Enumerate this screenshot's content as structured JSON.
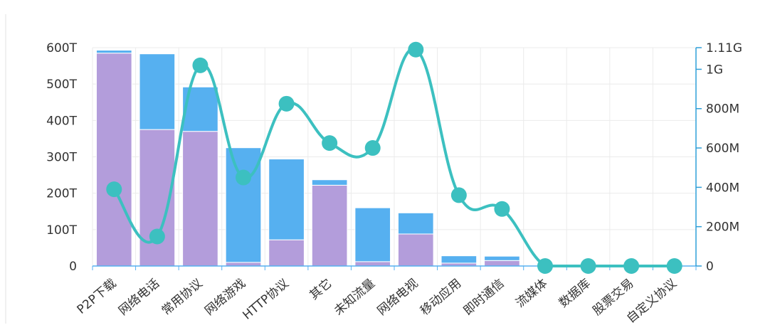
{
  "chart_data": {
    "type": "bar",
    "stacked": true,
    "grid": true,
    "categories": [
      "P2P下载",
      "网络电话",
      "常用协议",
      "网络游戏",
      "HTTP协议",
      "其它",
      "未知流量",
      "网络电视",
      "移动应用",
      "即时通信",
      "流媒体",
      "数据库",
      "股票交易",
      "自定义协议"
    ],
    "series": [
      {
        "type": "bar",
        "axis": "left",
        "color": "#b39ddb",
        "values": [
          585,
          375,
          370,
          10,
          72,
          222,
          12,
          88,
          8,
          15,
          0,
          0,
          0,
          0
        ]
      },
      {
        "type": "bar",
        "axis": "left",
        "color": "#56b0f0",
        "values": [
          8,
          208,
          122,
          315,
          222,
          15,
          148,
          58,
          20,
          12,
          0,
          0,
          0,
          0
        ]
      },
      {
        "type": "line",
        "axis": "right",
        "color": "#3cc0c0",
        "smooth": true,
        "values": [
          390,
          150,
          1020,
          450,
          825,
          625,
          600,
          1100,
          360,
          290,
          0,
          0,
          0,
          0
        ]
      }
    ],
    "y_left": {
      "min": 0,
      "max": 600,
      "ticks": [
        0,
        100,
        200,
        300,
        400,
        500,
        600
      ],
      "tick_labels": [
        "0",
        "100T",
        "200T",
        "300T",
        "400T",
        "500T",
        "600T"
      ]
    },
    "y_right": {
      "min": 0,
      "max": 1110,
      "ticks": [
        0,
        200,
        400,
        600,
        800,
        1000,
        1110
      ],
      "tick_labels": [
        "0",
        "200M",
        "400M",
        "600M",
        "800M",
        "1G",
        "1.11G"
      ],
      "axis_color": "#2f9fd8"
    }
  }
}
